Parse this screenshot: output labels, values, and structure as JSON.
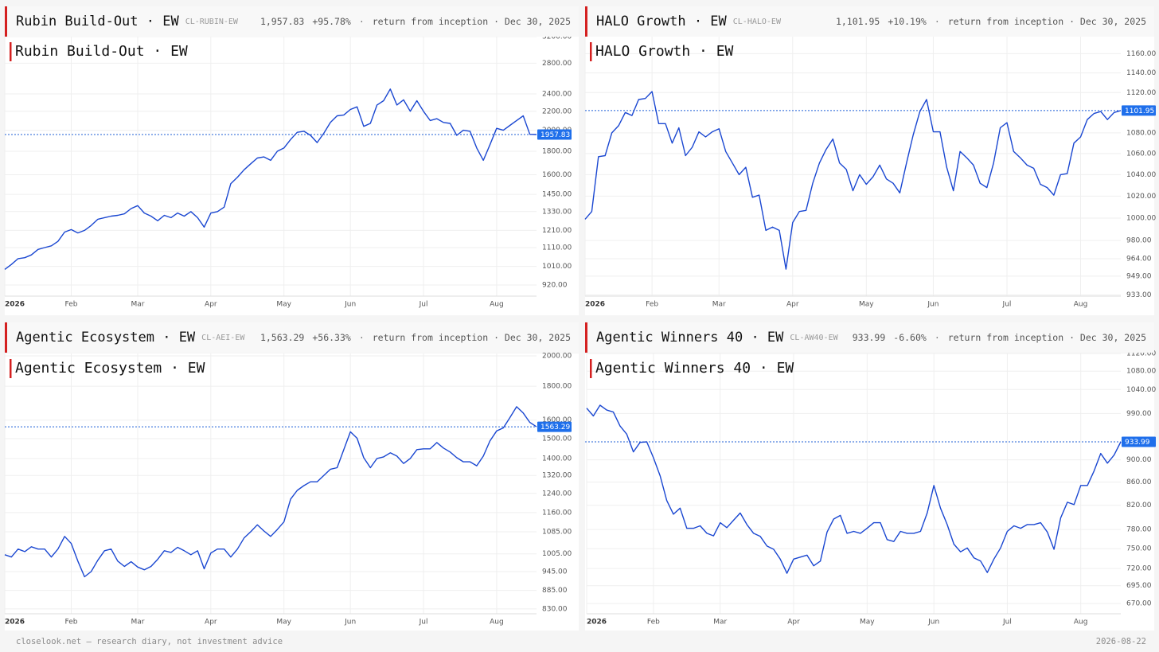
{
  "chart_data": [
    {
      "type": "line",
      "title": "Rubin Build-Out · EW",
      "ticker": "CL-RUBIN-EW",
      "last_value": "1,957.83",
      "change": "+95.78%",
      "note": "return from inception · Dec 30, 2025",
      "yscale": "log",
      "grid": true,
      "color": "#1a47d1",
      "categories": [
        "2026",
        null,
        null,
        null,
        null,
        null,
        null,
        null,
        null,
        null,
        "Feb",
        null,
        null,
        null,
        null,
        null,
        null,
        null,
        null,
        null,
        "Mar",
        null,
        null,
        null,
        null,
        null,
        null,
        null,
        null,
        null,
        null,
        "Apr",
        null,
        null,
        null,
        null,
        null,
        null,
        null,
        null,
        null,
        null,
        "May",
        null,
        null,
        null,
        null,
        null,
        null,
        null,
        null,
        null,
        "Jun",
        null,
        null,
        null,
        null,
        null,
        null,
        null,
        null,
        null,
        null,
        "Jul",
        null,
        null,
        null,
        null,
        null,
        null,
        null,
        null,
        null,
        null,
        "Aug",
        null,
        null,
        null,
        null,
        null,
        null
      ],
      "values": [
        995,
        1020,
        1050,
        1055,
        1070,
        1100,
        1110,
        1120,
        1145,
        1200,
        1215,
        1195,
        1210,
        1240,
        1280,
        1290,
        1300,
        1305,
        1315,
        1350,
        1370,
        1320,
        1300,
        1270,
        1305,
        1290,
        1320,
        1300,
        1330,
        1290,
        1230,
        1320,
        1330,
        1360,
        1530,
        1580,
        1640,
        1690,
        1740,
        1750,
        1720,
        1800,
        1830,
        1910,
        1980,
        1990,
        1950,
        1880,
        1970,
        2080,
        2150,
        2160,
        2220,
        2250,
        2040,
        2070,
        2270,
        2320,
        2460,
        2270,
        2330,
        2200,
        2320,
        2200,
        2100,
        2120,
        2080,
        2070,
        1950,
        2000,
        1990,
        1830,
        1720,
        1860,
        2020,
        2000,
        2050,
        2100,
        2150,
        1960,
        1957.83
      ],
      "ylim": [
        870,
        3200
      ],
      "yticks": [
        {
          "value": 920,
          "label": "920.00"
        },
        {
          "value": 1010,
          "label": "1010.00"
        },
        {
          "value": 1110,
          "label": "1110.00"
        },
        {
          "value": 1210,
          "label": "1210.00"
        },
        {
          "value": 1330,
          "label": "1330.00"
        },
        {
          "value": 1450,
          "label": "1450.00"
        },
        {
          "value": 1600,
          "label": "1600.00"
        },
        {
          "value": 1800,
          "label": "1800.00"
        },
        {
          "value": 2000,
          "label": "2000.00"
        },
        {
          "value": 2200,
          "label": "2200.00"
        },
        {
          "value": 2400,
          "label": "2400.00"
        },
        {
          "value": 2800,
          "label": "2800.00"
        },
        {
          "value": 3200,
          "label": "3200.00"
        }
      ],
      "price_line": {
        "value": 1957.83,
        "label": "1957.83"
      }
    },
    {
      "type": "line",
      "title": "HALO Growth · EW",
      "ticker": "CL-HALO-EW",
      "last_value": "1,101.95",
      "change": "+10.19%",
      "note": "return from inception · Dec 30, 2025",
      "yscale": "log",
      "grid": true,
      "color": "#1a47d1",
      "categories": [
        "2026",
        null,
        null,
        null,
        null,
        null,
        null,
        null,
        null,
        null,
        "Feb",
        null,
        null,
        null,
        null,
        null,
        null,
        null,
        null,
        null,
        "Mar",
        null,
        null,
        null,
        null,
        null,
        null,
        null,
        null,
        null,
        null,
        "Apr",
        null,
        null,
        null,
        null,
        null,
        null,
        null,
        null,
        null,
        null,
        "May",
        null,
        null,
        null,
        null,
        null,
        null,
        null,
        null,
        null,
        "Jun",
        null,
        null,
        null,
        null,
        null,
        null,
        null,
        null,
        null,
        null,
        "Jul",
        null,
        null,
        null,
        null,
        null,
        null,
        null,
        null,
        null,
        null,
        "Aug",
        null,
        null,
        null,
        null,
        null,
        null
      ],
      "values": [
        999,
        1006,
        1057,
        1058,
        1080,
        1087,
        1100,
        1097,
        1113,
        1114,
        1121,
        1089,
        1089,
        1070,
        1085,
        1058,
        1066,
        1081,
        1076,
        1081,
        1084,
        1062,
        1051,
        1040,
        1047,
        1019,
        1021,
        989,
        992,
        989,
        955,
        996,
        1006,
        1007,
        1032,
        1051,
        1064,
        1074,
        1051,
        1045,
        1025,
        1040,
        1031,
        1038,
        1049,
        1036,
        1032,
        1023,
        1051,
        1078,
        1101,
        1113,
        1081,
        1081,
        1047,
        1025,
        1062,
        1056,
        1049,
        1032,
        1028,
        1051,
        1085,
        1090,
        1062,
        1056,
        1049,
        1046,
        1031,
        1028,
        1021,
        1040,
        1041,
        1070,
        1076,
        1093,
        1099,
        1101,
        1093,
        1100,
        1101.95
      ],
      "ylim": [
        932,
        1178
      ],
      "yticks": [
        {
          "value": 933,
          "label": "933.00"
        },
        {
          "value": 949,
          "label": "949.00"
        },
        {
          "value": 964,
          "label": "964.00"
        },
        {
          "value": 980,
          "label": "980.00"
        },
        {
          "value": 1000,
          "label": "1000.00"
        },
        {
          "value": 1020,
          "label": "1020.00"
        },
        {
          "value": 1040,
          "label": "1040.00"
        },
        {
          "value": 1060,
          "label": "1060.00"
        },
        {
          "value": 1080,
          "label": "1080.00"
        },
        {
          "value": 1120,
          "label": "1120.00"
        },
        {
          "value": 1140,
          "label": "1140.00"
        },
        {
          "value": 1160,
          "label": "1160.00"
        }
      ],
      "price_line": {
        "value": 1101.95,
        "label": "1101.95"
      }
    },
    {
      "type": "line",
      "title": "Agentic Ecosystem · EW",
      "ticker": "CL-AEI-EW",
      "last_value": "1,563.29",
      "change": "+56.33%",
      "note": "return from inception · Dec 30, 2025",
      "yscale": "log",
      "grid": true,
      "color": "#1a47d1",
      "categories": [
        "2026",
        null,
        null,
        null,
        null,
        null,
        null,
        null,
        null,
        null,
        "Feb",
        null,
        null,
        null,
        null,
        null,
        null,
        null,
        null,
        null,
        "Mar",
        null,
        null,
        null,
        null,
        null,
        null,
        null,
        null,
        null,
        null,
        "Apr",
        null,
        null,
        null,
        null,
        null,
        null,
        null,
        null,
        null,
        null,
        "May",
        null,
        null,
        null,
        null,
        null,
        null,
        null,
        null,
        null,
        "Jun",
        null,
        null,
        null,
        null,
        null,
        null,
        null,
        null,
        null,
        null,
        "Jul",
        null,
        null,
        null,
        null,
        null,
        null,
        null,
        null,
        null,
        null,
        "Aug",
        null,
        null,
        null,
        null,
        null,
        null
      ],
      "values": [
        1002,
        994,
        1022,
        1013,
        1030,
        1022,
        1022,
        994,
        1022,
        1068,
        1042,
        980,
        928,
        945,
        983,
        1016,
        1022,
        980,
        962,
        978,
        960,
        951,
        962,
        986,
        1016,
        1010,
        1028,
        1016,
        1002,
        1016,
        954,
        1008,
        1022,
        1022,
        994,
        1022,
        1062,
        1085,
        1112,
        1088,
        1068,
        1094,
        1123,
        1216,
        1253,
        1274,
        1291,
        1291,
        1320,
        1349,
        1356,
        1444,
        1536,
        1502,
        1404,
        1356,
        1400,
        1408,
        1428,
        1412,
        1376,
        1400,
        1444,
        1448,
        1448,
        1480,
        1452,
        1432,
        1404,
        1384,
        1384,
        1365,
        1412,
        1488,
        1541,
        1557,
        1614,
        1676,
        1640,
        1587,
        1563.29
      ],
      "ylim": [
        816,
        2017
      ],
      "yticks": [
        {
          "value": 830,
          "label": "830.00"
        },
        {
          "value": 885,
          "label": "885.00"
        },
        {
          "value": 945,
          "label": "945.00"
        },
        {
          "value": 1005,
          "label": "1005.00"
        },
        {
          "value": 1085,
          "label": "1085.00"
        },
        {
          "value": 1160,
          "label": "1160.00"
        },
        {
          "value": 1240,
          "label": "1240.00"
        },
        {
          "value": 1320,
          "label": "1320.00"
        },
        {
          "value": 1400,
          "label": "1400.00"
        },
        {
          "value": 1500,
          "label": "1500.00"
        },
        {
          "value": 1600,
          "label": "1600.00"
        },
        {
          "value": 1800,
          "label": "1800.00"
        },
        {
          "value": 2000,
          "label": "2000.00"
        }
      ],
      "price_line": {
        "value": 1563.29,
        "label": "1563.29"
      }
    },
    {
      "type": "line",
      "title": "Agentic Winners 40 · EW",
      "ticker": "CL-AW40-EW",
      "last_value": "933.99",
      "change": "-6.60%",
      "note": "return from inception · Dec 30, 2025",
      "yscale": "log",
      "grid": true,
      "color": "#1a47d1",
      "categories": [
        "2026",
        null,
        null,
        null,
        null,
        null,
        null,
        null,
        null,
        null,
        "Feb",
        null,
        null,
        null,
        null,
        null,
        null,
        null,
        null,
        null,
        "Mar",
        null,
        null,
        null,
        null,
        null,
        null,
        null,
        null,
        null,
        null,
        "Apr",
        null,
        null,
        null,
        null,
        null,
        null,
        null,
        null,
        null,
        null,
        "May",
        null,
        null,
        null,
        null,
        null,
        null,
        null,
        null,
        null,
        "Jun",
        null,
        null,
        null,
        null,
        null,
        null,
        null,
        null,
        null,
        null,
        "Jul",
        null,
        null,
        null,
        null,
        null,
        null,
        null,
        null,
        null,
        null,
        "Aug",
        null,
        null,
        null,
        null,
        null,
        null
      ],
      "values": [
        1001,
        985,
        1007,
        997,
        993,
        965,
        949,
        915,
        933,
        934,
        904,
        871,
        828,
        805,
        815,
        782,
        782,
        786,
        774,
        770,
        791,
        783,
        795,
        807,
        788,
        774,
        769,
        754,
        749,
        734,
        713,
        734,
        737,
        740,
        724,
        731,
        776,
        797,
        803,
        774,
        777,
        774,
        782,
        791,
        791,
        764,
        761,
        777,
        774,
        774,
        777,
        807,
        854,
        815,
        788,
        757,
        745,
        751,
        736,
        731,
        714,
        734,
        751,
        777,
        786,
        782,
        788,
        788,
        791,
        776,
        749,
        799,
        825,
        821,
        854,
        854,
        880,
        912,
        894,
        909,
        933.99
      ],
      "ylim": [
        656,
        1120
      ],
      "yticks": [
        {
          "value": 670,
          "label": "670.00"
        },
        {
          "value": 695,
          "label": "695.00"
        },
        {
          "value": 720,
          "label": "720.00"
        },
        {
          "value": 750,
          "label": "750.00"
        },
        {
          "value": 780,
          "label": "780.00"
        },
        {
          "value": 820,
          "label": "820.00"
        },
        {
          "value": 860,
          "label": "860.00"
        },
        {
          "value": 900,
          "label": "900.00"
        },
        {
          "value": 990,
          "label": "990.00"
        },
        {
          "value": 1040,
          "label": "1040.00"
        },
        {
          "value": 1080,
          "label": "1080.00"
        },
        {
          "value": 1120,
          "label": "1120.00"
        }
      ],
      "price_line": {
        "value": 933.99,
        "label": "933.99"
      }
    }
  ],
  "footer": {
    "left": "closelook.net — research diary, not investment advice",
    "right": "2026-08-22"
  }
}
